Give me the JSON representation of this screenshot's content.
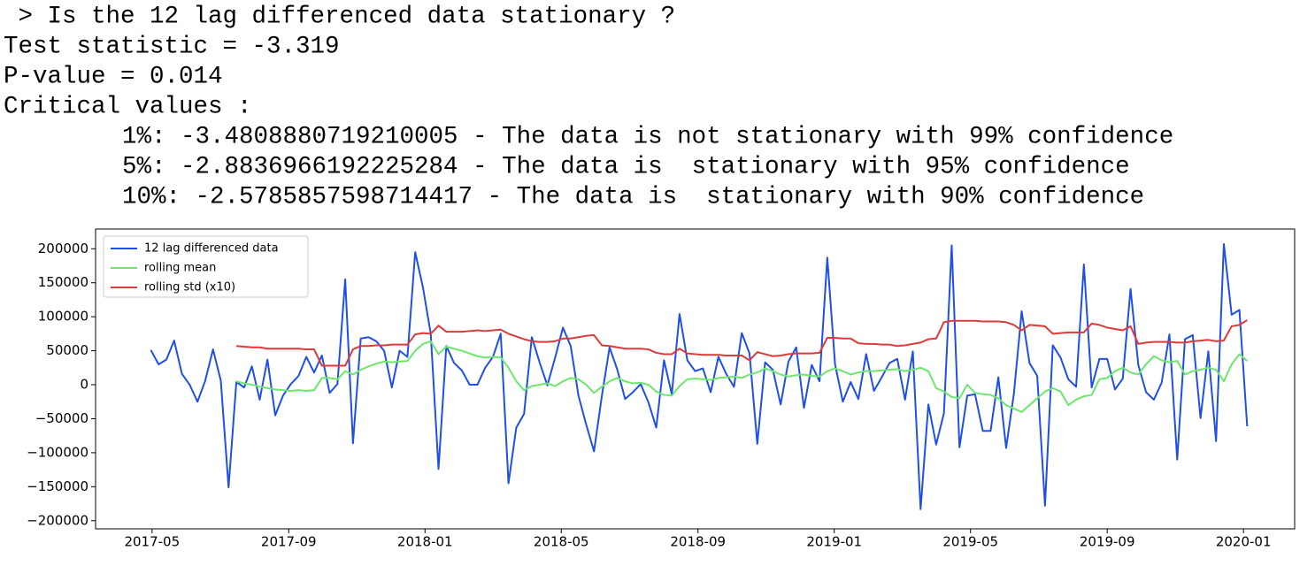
{
  "console": {
    "lines": [
      " > Is the 12 lag differenced data stationary ?",
      "Test statistic = -3.319",
      "P-value = 0.014",
      "Critical values :"
    ],
    "indented_lines": [
      "1%: -3.4808880719210005 - The data is not stationary with 99% confidence",
      "5%: -2.8836966192225284 - The data is  stationary with 95% confidence",
      "10%: -2.5785857598714417 - The data is  stationary with 90% confidence"
    ]
  },
  "chart_data": {
    "type": "line",
    "x": [
      2017.33,
      2017.349,
      2017.368,
      2017.387,
      2017.406,
      2017.425,
      2017.444,
      2017.463,
      2017.482,
      2017.501,
      2017.52,
      2017.539,
      2017.558,
      2017.577,
      2017.596,
      2017.615,
      2017.634,
      2017.653,
      2017.672,
      2017.691,
      2017.71,
      2017.729,
      2017.748,
      2017.767,
      2017.786,
      2017.805,
      2017.824,
      2017.843,
      2017.862,
      2017.881,
      2017.9,
      2017.919,
      2017.938,
      2017.957,
      2017.976,
      2017.995,
      2018.014,
      2018.033,
      2018.052,
      2018.071,
      2018.09,
      2018.109,
      2018.128,
      2018.147,
      2018.166,
      2018.185,
      2018.204,
      2018.223,
      2018.242,
      2018.261,
      2018.28,
      2018.299,
      2018.318,
      2018.337,
      2018.356,
      2018.375,
      2018.394,
      2018.413,
      2018.432,
      2018.451,
      2018.47,
      2018.489,
      2018.508,
      2018.527,
      2018.546,
      2018.565,
      2018.584,
      2018.603,
      2018.622,
      2018.641,
      2018.66,
      2018.679,
      2018.698,
      2018.717,
      2018.736,
      2018.755,
      2018.774,
      2018.793,
      2018.812,
      2018.831,
      2018.85,
      2018.869,
      2018.888,
      2018.907,
      2018.926,
      2018.945,
      2018.964,
      2018.983,
      2019.002,
      2019.021,
      2019.04,
      2019.059,
      2019.078,
      2019.097,
      2019.116,
      2019.135,
      2019.154,
      2019.173,
      2019.192,
      2019.211,
      2019.23,
      2019.249,
      2019.268,
      2019.287,
      2019.306,
      2019.325,
      2019.344,
      2019.363,
      2019.382,
      2019.401,
      2019.42,
      2019.439,
      2019.458,
      2019.477,
      2019.496,
      2019.515,
      2019.534,
      2019.553,
      2019.572,
      2019.591,
      2019.61,
      2019.629,
      2019.648,
      2019.667,
      2019.686,
      2019.705,
      2019.724,
      2019.743,
      2019.762,
      2019.781,
      2019.8,
      2019.819,
      2019.838,
      2019.857,
      2019.876,
      2019.895,
      2019.914,
      2019.933,
      2019.952,
      2019.971,
      2019.99,
      2020.009
    ],
    "series": [
      {
        "name": "12 lag differenced data",
        "color": "#1f4fe6",
        "values": [
          51000,
          30000,
          37000,
          65000,
          16000,
          0,
          -25000,
          6000,
          52000,
          6000,
          -151000,
          4000,
          -4000,
          27000,
          -22000,
          37000,
          -45000,
          -16000,
          1000,
          13000,
          41000,
          18000,
          43000,
          -12000,
          1000,
          155000,
          -86000,
          68000,
          70000,
          64000,
          50000,
          -4000,
          50000,
          41000,
          195000,
          143000,
          75000,
          -124000,
          57000,
          32000,
          21000,
          0,
          0,
          25000,
          41000,
          75000,
          -145000,
          -63000,
          -43000,
          70000,
          33000,
          -1000,
          40000,
          84000,
          57000,
          -16000,
          -59000,
          -98000,
          -17000,
          55000,
          22000,
          -21000,
          -11000,
          1000,
          -26000,
          -63000,
          36000,
          -14000,
          104000,
          36000,
          20000,
          24000,
          -11000,
          41000,
          16000,
          -3000,
          76000,
          46000,
          -87000,
          33000,
          22000,
          -29000,
          34000,
          55000,
          -34000,
          29000,
          5000,
          187000,
          30000,
          -25000,
          4000,
          -21000,
          45000,
          -9000,
          11000,
          32000,
          38000,
          -22000,
          49000,
          -183000,
          -29000,
          -88000,
          -42000,
          205000,
          -92000,
          -16000,
          -14000,
          -68000,
          -68000,
          11000,
          -93000,
          -13000,
          108000,
          32000,
          13000,
          -178000,
          58000,
          40000,
          8000,
          -3000,
          177000,
          -4000,
          38000,
          38000,
          -7000,
          9000,
          141000,
          29000,
          -11000,
          -22000,
          3000,
          74000,
          -110000,
          67000,
          73000,
          -49000,
          49000,
          -83000,
          207000,
          103000,
          110000,
          -61000
        ]
      },
      {
        "name": "rolling mean",
        "color": "#6ee66e",
        "values": [
          null,
          null,
          null,
          null,
          null,
          null,
          null,
          null,
          null,
          null,
          null,
          5000,
          2000,
          0,
          -3000,
          -5000,
          -7000,
          -8000,
          -9000,
          -8000,
          -9000,
          -8000,
          10000,
          10000,
          8000,
          20000,
          15000,
          22000,
          27000,
          31000,
          34000,
          33000,
          34000,
          35000,
          50000,
          60000,
          64000,
          45000,
          56000,
          53000,
          50000,
          46000,
          42000,
          40000,
          41000,
          40000,
          25000,
          5000,
          -8000,
          -2000,
          0,
          2000,
          -2000,
          5000,
          10000,
          8000,
          0,
          -12000,
          -3000,
          5000,
          10000,
          5000,
          2000,
          3000,
          0,
          -10000,
          -15000,
          -16000,
          -2000,
          8000,
          9000,
          8000,
          7000,
          10000,
          11000,
          12000,
          10000,
          15000,
          18000,
          24000,
          20000,
          15000,
          12000,
          14000,
          15000,
          13000,
          12000,
          20000,
          24000,
          20000,
          15000,
          18000,
          20000,
          20000,
          21000,
          22000,
          23000,
          20000,
          22000,
          25000,
          20000,
          -5000,
          -10000,
          -18000,
          -20000,
          0,
          -12000,
          -14000,
          -15000,
          -20000,
          -30000,
          -35000,
          -40000,
          -30000,
          -20000,
          -10000,
          -5000,
          -10000,
          -30000,
          -22000,
          -17000,
          -15000,
          8000,
          10000,
          20000,
          25000,
          18000,
          15000,
          30000,
          42000,
          36000,
          33000,
          35000,
          15000,
          20000,
          22000,
          25000,
          22000,
          5000,
          30000,
          45000,
          35000
        ]
      },
      {
        "name": "rolling std (x10)",
        "color": "#dd3a3a",
        "values": [
          null,
          null,
          null,
          null,
          null,
          null,
          null,
          null,
          null,
          null,
          null,
          57000,
          56000,
          55000,
          55000,
          53000,
          53000,
          53000,
          53000,
          53000,
          52000,
          52000,
          28000,
          28000,
          28000,
          28000,
          52000,
          57000,
          57000,
          58000,
          58000,
          59000,
          59000,
          59000,
          74000,
          76000,
          75000,
          87000,
          78000,
          78000,
          78000,
          79000,
          80000,
          79000,
          80000,
          81000,
          75000,
          71000,
          67000,
          64000,
          63000,
          63000,
          64000,
          68000,
          68000,
          70000,
          72000,
          73000,
          58000,
          57000,
          55000,
          53000,
          53000,
          53000,
          52000,
          47000,
          45000,
          45000,
          53000,
          46000,
          45000,
          44000,
          44000,
          44000,
          43000,
          43000,
          43000,
          36000,
          48000,
          45000,
          42000,
          43000,
          45000,
          46000,
          46000,
          46000,
          47000,
          69000,
          69000,
          68000,
          68000,
          61000,
          60000,
          60000,
          59000,
          59000,
          57000,
          58000,
          60000,
          62000,
          67000,
          68000,
          92000,
          94000,
          94000,
          94000,
          94000,
          93000,
          93000,
          93000,
          92000,
          88000,
          80000,
          88000,
          87000,
          86000,
          75000,
          76000,
          77000,
          77000,
          77000,
          90000,
          88000,
          84000,
          82000,
          80000,
          86000,
          60000,
          62000,
          63000,
          63000,
          63000,
          62000,
          62000,
          64000,
          65000,
          66000,
          64000,
          65000,
          86000,
          88000,
          95000
        ]
      }
    ],
    "xlim": [
      2017.195,
      2020.125
    ],
    "xticks": [
      {
        "value": 2017.333,
        "label": "2017-05"
      },
      {
        "value": 2017.667,
        "label": "2017-09"
      },
      {
        "value": 2018.0,
        "label": "2018-01"
      },
      {
        "value": 2018.333,
        "label": "2018-05"
      },
      {
        "value": 2018.667,
        "label": "2018-09"
      },
      {
        "value": 2019.0,
        "label": "2019-01"
      },
      {
        "value": 2019.333,
        "label": "2019-05"
      },
      {
        "value": 2019.667,
        "label": "2019-09"
      },
      {
        "value": 2020.0,
        "label": "2020-01"
      }
    ],
    "ylim": [
      -212000,
      229000
    ],
    "yticks": [
      {
        "value": -200000,
        "label": "−200000"
      },
      {
        "value": -150000,
        "label": "−150000"
      },
      {
        "value": -100000,
        "label": "−100000"
      },
      {
        "value": -50000,
        "label": "−50000"
      },
      0,
      50000,
      100000,
      150000,
      200000
    ],
    "legend": "upper left"
  }
}
